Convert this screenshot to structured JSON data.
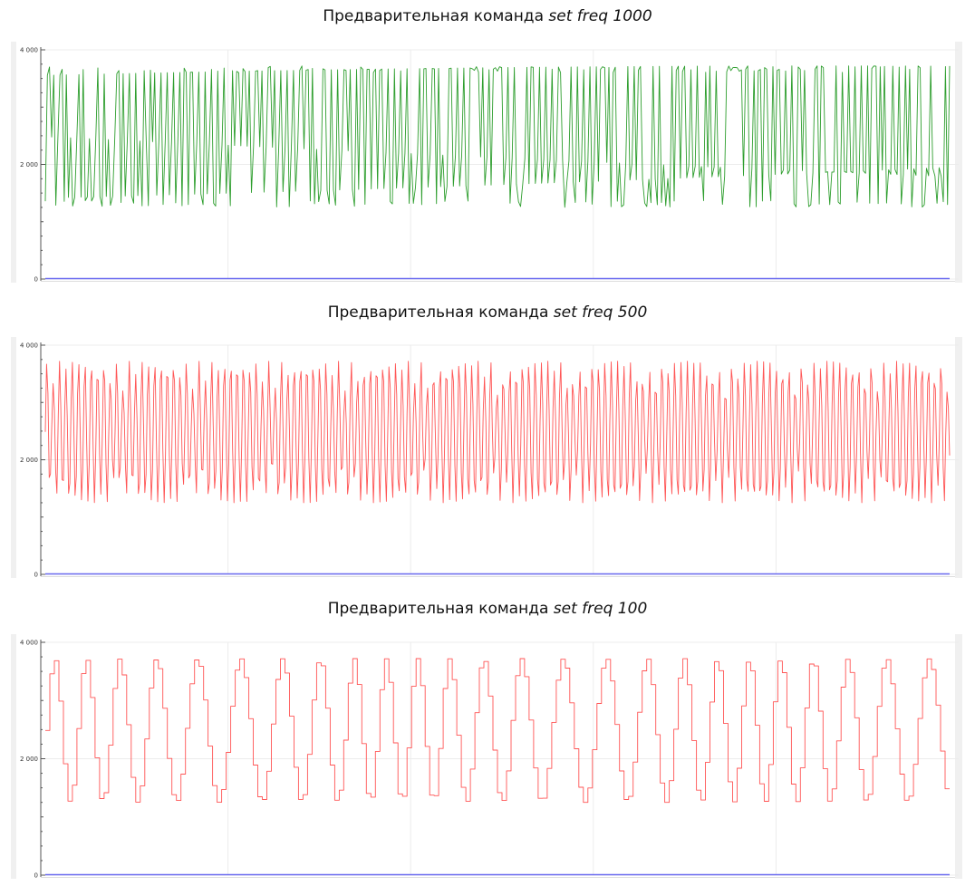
{
  "chart_data": [
    {
      "type": "line",
      "title": "Предварительная команда",
      "title_command": "set freq 1000",
      "ylim": [
        0,
        4000
      ],
      "y_ticks": [
        0,
        2000,
        4000
      ],
      "y_tick_labels": [
        "0",
        "2 000",
        "4 000"
      ],
      "grid": true,
      "series": [
        {
          "color": "#2e9e2e",
          "freq": 1000,
          "min": 1250,
          "max": 3720
        },
        {
          "color": "#6b6bf0",
          "constant": 0
        }
      ]
    },
    {
      "type": "line",
      "title": "Предварительная команда",
      "title_command": "set freq 500",
      "ylim": [
        0,
        4000
      ],
      "y_ticks": [
        0,
        2000,
        4000
      ],
      "y_tick_labels": [
        "0",
        "2 000",
        "4 000"
      ],
      "grid": true,
      "series": [
        {
          "color": "#ff5555",
          "freq": 500,
          "min": 1250,
          "max": 3720
        },
        {
          "color": "#6b6bf0",
          "constant": 0
        }
      ]
    },
    {
      "type": "line",
      "title": "Предварительная команда",
      "title_command": "set freq 100",
      "ylim": [
        0,
        4000
      ],
      "y_ticks": [
        0,
        2000,
        4000
      ],
      "y_tick_labels": [
        "0",
        "2 000",
        "4 000"
      ],
      "grid": true,
      "series": [
        {
          "color": "#ff5555",
          "freq": 100,
          "min": 1250,
          "max": 3720
        },
        {
          "color": "#6b6bf0",
          "constant": 0
        }
      ]
    }
  ]
}
